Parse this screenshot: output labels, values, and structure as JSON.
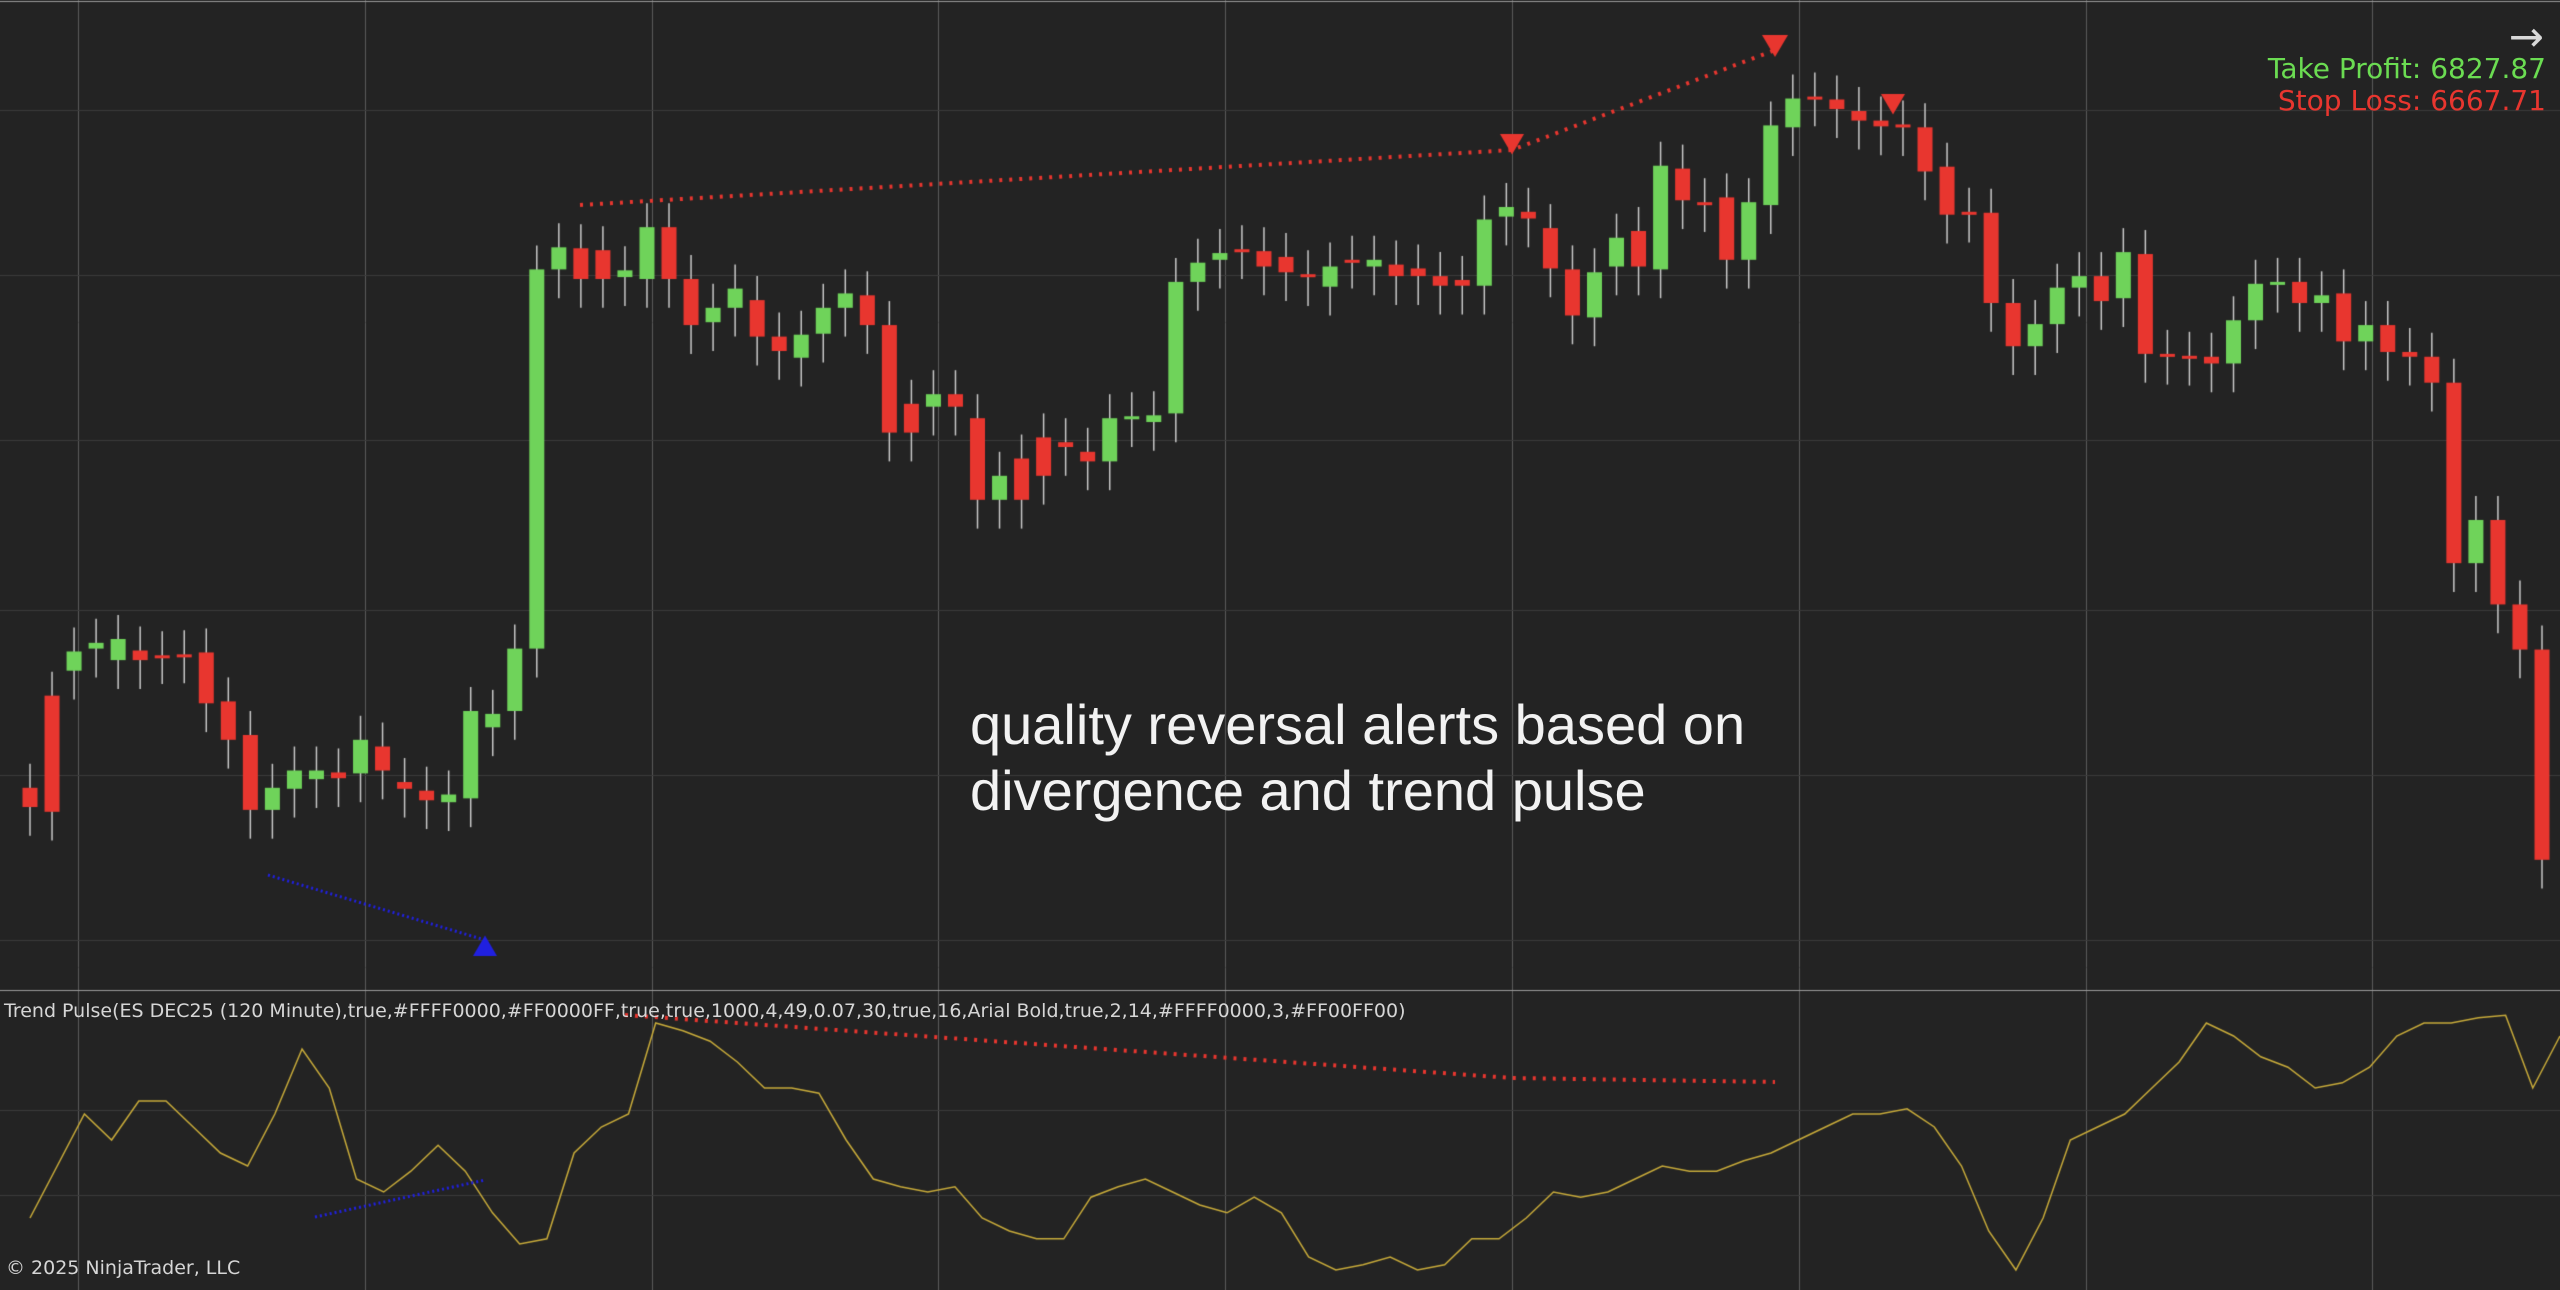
{
  "colors": {
    "background": "#232323",
    "grid": "#3a3a3a",
    "separator": "#9a9a9a",
    "up": "#6fd35a",
    "down": "#e8362f",
    "wick": "#c9c9c9",
    "take_profit": "#6bdc52",
    "stop_loss": "#e8362f",
    "oscillator": "#c8ab3a",
    "bull_divergence": "#2020e0",
    "bear_divergence": "#e8362f"
  },
  "header": {
    "take_profit": "Take Profit: 6827.87",
    "stop_loss": "Stop Loss: 6667.71",
    "arrow_icon": "→"
  },
  "caption": {
    "line1": "quality reversal alerts based on",
    "line2": "divergence and trend pulse"
  },
  "indicator": {
    "label": "Trend Pulse(ES DEC25 (120 Minute),true,#FFFF0000,#FF0000FF,true,true,1000,4,49,0.07,30,true,16,Arial Bold,true,2,14,#FFFF0000,3,#FF00FF00)"
  },
  "footer": {
    "copyright": "© 2025 NinjaTrader, LLC"
  },
  "chart_data": {
    "type": "candlestick",
    "instrument": "ES DEC25 (120 Minute)",
    "candles": [
      [
        805,
        0,
        825,
        -30
      ],
      [
        709,
        0,
        830,
        -40
      ],
      [
        683,
        0,
        663,
        -30
      ],
      [
        660,
        0,
        654,
        -30
      ],
      [
        672,
        0,
        650,
        -40
      ],
      [
        662,
        0,
        672,
        -30
      ],
      [
        667,
        0,
        667,
        -30
      ],
      [
        666,
        0,
        666,
        -30
      ],
      [
        664,
        0,
        717,
        -50
      ],
      [
        715,
        0,
        755,
        -40
      ],
      [
        750,
        0,
        828,
        -60
      ],
      [
        828,
        0,
        805,
        -60
      ],
      [
        806,
        0,
        787,
        -60
      ],
      [
        796,
        0,
        787,
        -40
      ],
      [
        789,
        0,
        795,
        -40
      ],
      [
        790,
        0,
        755,
        -40
      ],
      [
        762,
        0,
        787,
        -40
      ],
      [
        799,
        0,
        806,
        -30
      ],
      [
        808,
        0,
        818,
        -40
      ],
      [
        820,
        0,
        812,
        -40
      ],
      [
        816,
        0,
        725,
        -40
      ],
      [
        742,
        0,
        728,
        -80
      ],
      [
        725,
        0,
        660,
        -40
      ],
      [
        660,
        0,
        265,
        -30
      ],
      [
        265,
        0,
        242,
        -30
      ],
      [
        243,
        0,
        275,
        -40
      ],
      [
        245,
        0,
        275,
        -40
      ],
      [
        273,
        0,
        266,
        -60
      ],
      [
        275,
        0,
        221,
        -40
      ],
      [
        221,
        0,
        275,
        -40
      ],
      [
        275,
        0,
        323,
        -30
      ],
      [
        320,
        0,
        305,
        -40
      ],
      [
        305,
        0,
        285,
        -30
      ],
      [
        297,
        0,
        335,
        -40
      ],
      [
        335,
        0,
        350,
        -40
      ],
      [
        357,
        0,
        333,
        -30
      ],
      [
        332,
        0,
        305,
        -40
      ],
      [
        305,
        0,
        290,
        -40
      ],
      [
        292,
        0,
        323,
        -40
      ],
      [
        323,
        0,
        435,
        -40
      ],
      [
        405,
        0,
        435,
        -40
      ],
      [
        408,
        0,
        395,
        -40
      ],
      [
        395,
        0,
        408,
        -40
      ],
      [
        420,
        0,
        505,
        -40
      ],
      [
        505,
        0,
        480,
        -40
      ],
      [
        462,
        0,
        505,
        -30
      ],
      [
        440,
        0,
        480,
        -40
      ],
      [
        445,
        0,
        450,
        -30
      ],
      [
        455,
        0,
        465,
        -30
      ],
      [
        465,
        0,
        420,
        -40
      ],
      [
        420,
        0,
        418,
        -60
      ],
      [
        424,
        0,
        417,
        -30
      ],
      [
        415,
        0,
        278,
        -40
      ],
      [
        278,
        0,
        258,
        -40
      ],
      [
        255,
        0,
        248,
        -30
      ],
      [
        244,
        0,
        245,
        -30
      ],
      [
        246,
        0,
        262,
        -40
      ],
      [
        252,
        0,
        268,
        -40
      ],
      [
        270,
        0,
        273,
        -30
      ],
      [
        283,
        0,
        262,
        -40
      ],
      [
        255,
        0,
        255,
        -40
      ],
      [
        262,
        0,
        255,
        -40
      ],
      [
        260,
        0,
        272,
        -30
      ],
      [
        264,
        0,
        272,
        -40
      ],
      [
        272,
        0,
        282,
        -40
      ],
      [
        276,
        0,
        282,
        -40
      ],
      [
        282,
        0,
        213,
        -60
      ],
      [
        210,
        0,
        200,
        -30
      ],
      [
        205,
        0,
        212,
        -40
      ],
      [
        222,
        0,
        264,
        -50
      ],
      [
        265,
        0,
        313,
        -40
      ],
      [
        315,
        0,
        268,
        -40
      ],
      [
        262,
        0,
        232,
        -40
      ],
      [
        225,
        0,
        262,
        -40
      ],
      [
        265,
        0,
        157,
        -50
      ],
      [
        160,
        0,
        193,
        -40
      ],
      [
        195,
        0,
        196,
        -30
      ],
      [
        190,
        0,
        255,
        -40
      ],
      [
        255,
        0,
        195,
        -40
      ],
      [
        198,
        0,
        115,
        -60
      ],
      [
        117,
        0,
        87,
        -40
      ],
      [
        85,
        0,
        86,
        -30
      ],
      [
        88,
        0,
        98,
        -30
      ],
      [
        100,
        0,
        110,
        -30
      ],
      [
        110,
        0,
        116,
        -40
      ],
      [
        114,
        0,
        117,
        -30
      ],
      [
        117,
        0,
        163,
        -40
      ],
      [
        158,
        0,
        208,
        -40
      ],
      [
        205,
        0,
        207,
        -40
      ],
      [
        206,
        0,
        300,
        -40
      ],
      [
        300,
        0,
        345,
        -50
      ],
      [
        345,
        0,
        322,
        -60
      ],
      [
        322,
        0,
        284,
        -40
      ],
      [
        284,
        0,
        272,
        -40
      ],
      [
        272,
        0,
        298,
        -30
      ],
      [
        295,
        0,
        247,
        -40
      ],
      [
        249,
        0,
        353,
        -40
      ],
      [
        353,
        0,
        355,
        -40
      ],
      [
        355,
        0,
        356,
        -40
      ],
      [
        356,
        0,
        363,
        -40
      ],
      [
        363,
        0,
        318,
        -40
      ],
      [
        318,
        0,
        280,
        -40
      ],
      [
        280,
        0,
        278,
        -30
      ],
      [
        278,
        0,
        300,
        -30
      ],
      [
        300,
        0,
        292,
        -40
      ],
      [
        290,
        0,
        340,
        -40
      ],
      [
        340,
        0,
        323,
        -40
      ],
      [
        323,
        0,
        351,
        -40
      ],
      [
        351,
        0,
        356,
        -30
      ],
      [
        356,
        0,
        383,
        -40
      ],
      [
        383,
        0,
        571,
        -60
      ],
      [
        571,
        0,
        526,
        -60
      ],
      [
        526,
        0,
        614,
        -40
      ],
      [
        614,
        0,
        661,
        -40
      ],
      [
        661,
        0,
        880,
        -50
      ]
    ],
    "candle_note": "each candle is [open, unused, close, unused] on a 0-1000 relative vertical scale (larger = lower on screen)",
    "oscillator": [
      80,
      60,
      40,
      50,
      35,
      35,
      45,
      55,
      60,
      40,
      15,
      30,
      65,
      70,
      62,
      52,
      62,
      78,
      90,
      88,
      55,
      45,
      40,
      5,
      8,
      12,
      20,
      30,
      30,
      32,
      50,
      65,
      68,
      70,
      68,
      80,
      85,
      88,
      88,
      72,
      68,
      65,
      70,
      75,
      78,
      72,
      78,
      95,
      100,
      98,
      95,
      100,
      98,
      88,
      88,
      80,
      70,
      72,
      70,
      65,
      60,
      62,
      62,
      58,
      55,
      50,
      45,
      40,
      40,
      38,
      45,
      60,
      85,
      100,
      80,
      50,
      45,
      40,
      30,
      20,
      5,
      10,
      18,
      22,
      30,
      28,
      22,
      10,
      5,
      5,
      3,
      2,
      30,
      10
    ]
  }
}
